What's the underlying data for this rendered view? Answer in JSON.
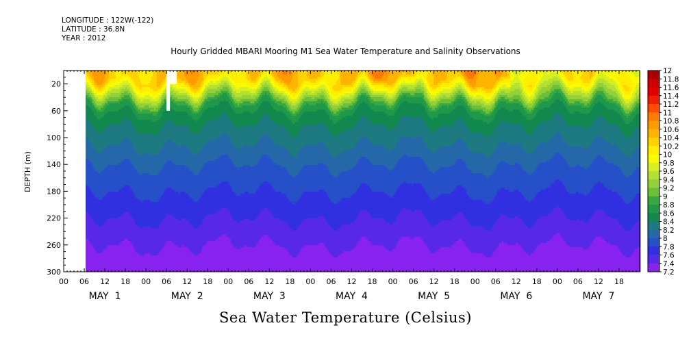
{
  "header": {
    "longitude": "LONGITUDE : 122W(-122)",
    "latitude": "LATITUDE : 36.8N",
    "year": "YEAR : 2012"
  },
  "chart_data": {
    "type": "heatmap",
    "title": "Hourly Gridded MBARI Mooring M1 Sea Water Temperature and Salinity Observations",
    "colorbar_title": "Sea Water Temperature (Celsius)",
    "ylabel": "DEPTH (m)",
    "ylim": [
      300,
      0
    ],
    "yticks": [
      20,
      60,
      100,
      140,
      180,
      220,
      260,
      300
    ],
    "x_hour_ticks": [
      "00",
      "06",
      "12",
      "18",
      "00",
      "06",
      "12",
      "18",
      "00",
      "06",
      "12",
      "18",
      "00",
      "06",
      "12",
      "18",
      "00",
      "06",
      "12",
      "18",
      "00",
      "06",
      "12",
      "18",
      "00",
      "06",
      "12",
      "18"
    ],
    "x_day_labels": [
      "MAY  1",
      "MAY  2",
      "MAY  3",
      "MAY  4",
      "MAY  5",
      "MAY  6",
      "MAY  7"
    ],
    "x_range_hours": [
      0,
      168
    ],
    "data_start_hour": 6,
    "colorbar": {
      "levels": [
        "12",
        "11.8",
        "11.6",
        "11.4",
        "11.2",
        "11",
        "10.8",
        "10.6",
        "10.4",
        "10.2",
        "10",
        "9.8",
        "9.6",
        "9.4",
        "9.2",
        "9",
        "8.8",
        "8.6",
        "8.4",
        "8.2",
        "8",
        "7.8",
        "7.6",
        "7.4",
        "7.2"
      ],
      "colors": [
        "#a80000",
        "#cc0000",
        "#e00000",
        "#f01e00",
        "#ff4a00",
        "#ff7a00",
        "#ff9a00",
        "#ffb400",
        "#ffd200",
        "#ffee00",
        "#fafa00",
        "#d6ef20",
        "#b4e030",
        "#94d038",
        "#6cc038",
        "#3aa840",
        "#20984a",
        "#10884e",
        "#1c7a80",
        "#2468a8",
        "#2650c8",
        "#3030e0",
        "#5828e8",
        "#8822ee",
        "#c020f0"
      ]
    },
    "depth_profile": [
      {
        "depth": 10,
        "value": 10.6
      },
      {
        "depth": 20,
        "value": 10.2
      },
      {
        "depth": 35,
        "value": 9.6
      },
      {
        "depth": 50,
        "value": 9.0
      },
      {
        "depth": 60,
        "value": 8.8
      },
      {
        "depth": 80,
        "value": 8.6
      },
      {
        "depth": 110,
        "value": 8.4
      },
      {
        "depth": 140,
        "value": 8.2
      },
      {
        "depth": 180,
        "value": 8.0
      },
      {
        "depth": 220,
        "value": 7.8
      },
      {
        "depth": 260,
        "value": 7.6
      },
      {
        "depth": 290,
        "value": 7.4
      }
    ],
    "missing_regions": [
      {
        "hour_start": 0,
        "hour_end": 6,
        "depth_top": 0,
        "depth_bottom": 300
      },
      {
        "hour_start": 30,
        "hour_end": 31,
        "depth_top": 0,
        "depth_bottom": 60
      },
      {
        "hour_start": 31,
        "hour_end": 33,
        "depth_top": 0,
        "depth_bottom": 20
      }
    ]
  }
}
